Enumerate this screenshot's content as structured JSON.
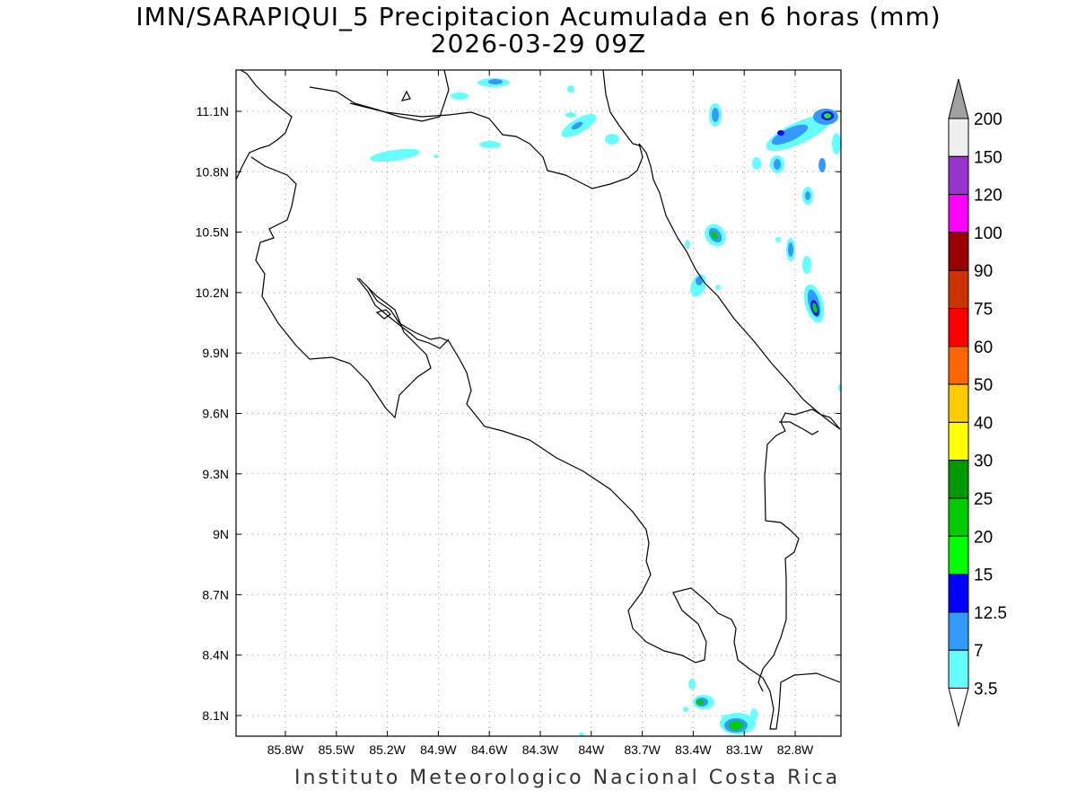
{
  "header": {
    "title_line1": "IMN/SARAPIQUI_5 Precipitacion Acumulada en 6 horas (mm)",
    "title_line2": "2026-03-29 09Z"
  },
  "footer": {
    "credit": "Instituto Meteorologico Nacional Costa Rica"
  },
  "map": {
    "lon_range": [
      -86.0,
      -83.0
    ],
    "lat_range": [
      8.0,
      11.3
    ],
    "lon_ticks": [
      "85.8W",
      "85.5W",
      "85.2W",
      "84.9W",
      "84.6W",
      "84.3W",
      "84W",
      "83.7W",
      "83.4W",
      "83.1W",
      "82.8W"
    ],
    "lat_ticks": [
      "11.1N",
      "10.8N",
      "10.5N",
      "10.2N",
      "9.9N",
      "9.6N",
      "9.3N",
      "9N",
      "8.7N",
      "8.4N",
      "8.1N"
    ],
    "grid": true,
    "gridline_color": "#999999"
  },
  "colorbar": {
    "labels": [
      "200",
      "150",
      "120",
      "100",
      "90",
      "75",
      "60",
      "50",
      "40",
      "30",
      "25",
      "20",
      "15",
      "12.5",
      "7",
      "3.5"
    ],
    "colors": [
      "#a0a0a0",
      "#f0f0f0",
      "#9933cc",
      "#ff00ff",
      "#990000",
      "#cc3300",
      "#ff0000",
      "#ff6600",
      "#ffcc00",
      "#ffff00",
      "#009900",
      "#00cc00",
      "#00ff00",
      "#0000ff",
      "#3399ff",
      "#66ffff"
    ]
  }
}
